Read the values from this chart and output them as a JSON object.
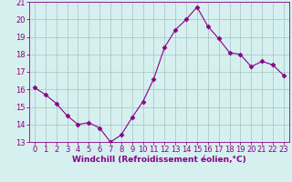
{
  "x": [
    0,
    1,
    2,
    3,
    4,
    5,
    6,
    7,
    8,
    9,
    10,
    11,
    12,
    13,
    14,
    15,
    16,
    17,
    18,
    19,
    20,
    21,
    22,
    23
  ],
  "y": [
    16.1,
    15.7,
    15.2,
    14.5,
    14.0,
    14.1,
    13.8,
    13.0,
    13.4,
    14.4,
    15.3,
    16.6,
    18.4,
    19.4,
    20.0,
    20.7,
    19.6,
    18.9,
    18.1,
    18.0,
    17.3,
    17.6,
    17.4,
    16.8
  ],
  "line_color": "#880088",
  "marker": "D",
  "marker_size": 2.5,
  "bg_color": "#d6f0f0",
  "grid_color": "#aacccc",
  "xlabel": "Windchill (Refroidissement éolien,°C)",
  "ylabel": "",
  "ylim": [
    13,
    21
  ],
  "xlim": [
    -0.5,
    23.5
  ],
  "yticks": [
    13,
    14,
    15,
    16,
    17,
    18,
    19,
    20,
    21
  ],
  "xticks": [
    0,
    1,
    2,
    3,
    4,
    5,
    6,
    7,
    8,
    9,
    10,
    11,
    12,
    13,
    14,
    15,
    16,
    17,
    18,
    19,
    20,
    21,
    22,
    23
  ],
  "tick_color": "#880088",
  "label_fontsize": 6.5,
  "tick_fontsize": 6
}
